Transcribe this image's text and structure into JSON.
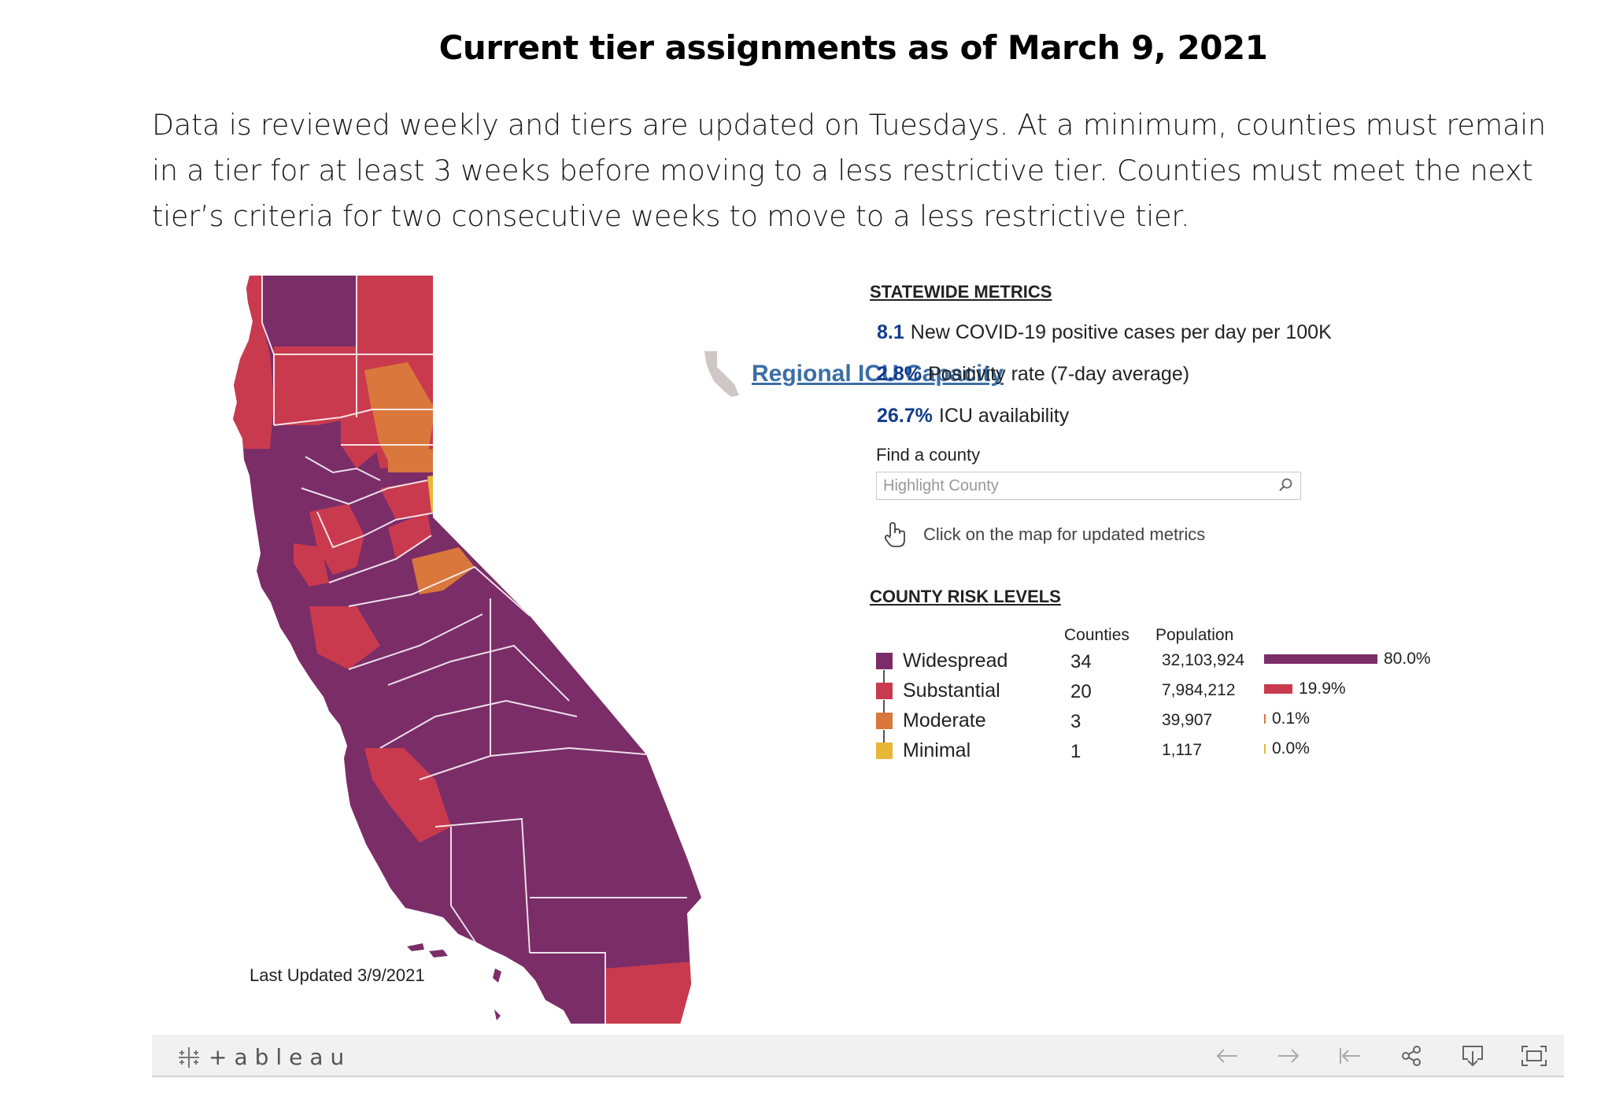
{
  "page": {
    "title": "Current tier assignments as of March 9, 2021",
    "intro": "Data is reviewed weekly and tiers are updated on Tuesdays. At a minimum, counties must remain in a tier for at least 3 weeks before moving to a less restrictive tier. Counties must meet the next tier’s criteria for two consecutive weeks to move to a less restrictive tier."
  },
  "map": {
    "region": "California",
    "icu_link": "Regional ICU Capacity",
    "last_updated": "Last Updated 3/9/2021",
    "tier_colors": {
      "widespread": "#7b2d68",
      "substantial": "#c93a4e",
      "moderate": "#d9773d",
      "minimal": "#e6b835"
    }
  },
  "statewide": {
    "heading": "STATEWIDE METRICS",
    "metrics": [
      {
        "value": "8.1",
        "label": "New COVID-19 positive cases per day per 100K"
      },
      {
        "value": "2.8%",
        "label": "Positivity rate (7-day average)"
      },
      {
        "value": "26.7%",
        "label": "ICU availability"
      }
    ],
    "find_label": "Find a county",
    "search_placeholder": "Highlight County",
    "hint": "Click on the map for updated metrics"
  },
  "risk": {
    "heading": "COUNTY RISK LEVELS",
    "col_counties": "Counties",
    "col_population": "Population",
    "levels": [
      {
        "name": "Widespread",
        "counties": "34",
        "population": "32,103,924",
        "pct": "80.0%",
        "share": 0.8,
        "color": "#7b2d68"
      },
      {
        "name": "Substantial",
        "counties": "20",
        "population": "7,984,212",
        "pct": "19.9%",
        "share": 0.199,
        "color": "#c93a4e"
      },
      {
        "name": "Moderate",
        "counties": "3",
        "population": "39,907",
        "pct": "0.1%",
        "share": 0.001,
        "color": "#d9773d"
      },
      {
        "name": "Minimal",
        "counties": "1",
        "population": "1,117",
        "pct": "0.0%",
        "share": 0.0,
        "color": "#e6b835"
      }
    ]
  },
  "toolbar": {
    "brand": "+ableau",
    "icons": [
      "undo-icon",
      "redo-icon",
      "revert-icon",
      "share-icon",
      "download-icon",
      "fullscreen-icon"
    ]
  }
}
